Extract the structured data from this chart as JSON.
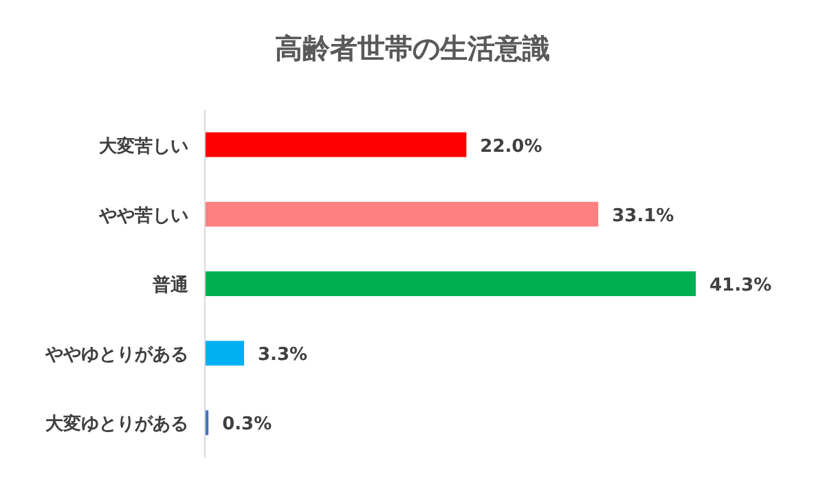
{
  "chart_data": {
    "type": "bar",
    "orientation": "horizontal",
    "title": "高齢者世帯の生活意識",
    "categories": [
      "大変苦しい",
      "やや苦しい",
      "普通",
      "ややゆとりがある",
      "大変ゆとりがある"
    ],
    "values": [
      22.0,
      33.1,
      41.3,
      3.3,
      0.3
    ],
    "colors": [
      "#ff0000",
      "#ff8080",
      "#00b050",
      "#00b0f0",
      "#4472c4"
    ],
    "value_labels": [
      "22.0%",
      "33.1%",
      "41.3%",
      "3.3%",
      "0.3%"
    ]
  }
}
